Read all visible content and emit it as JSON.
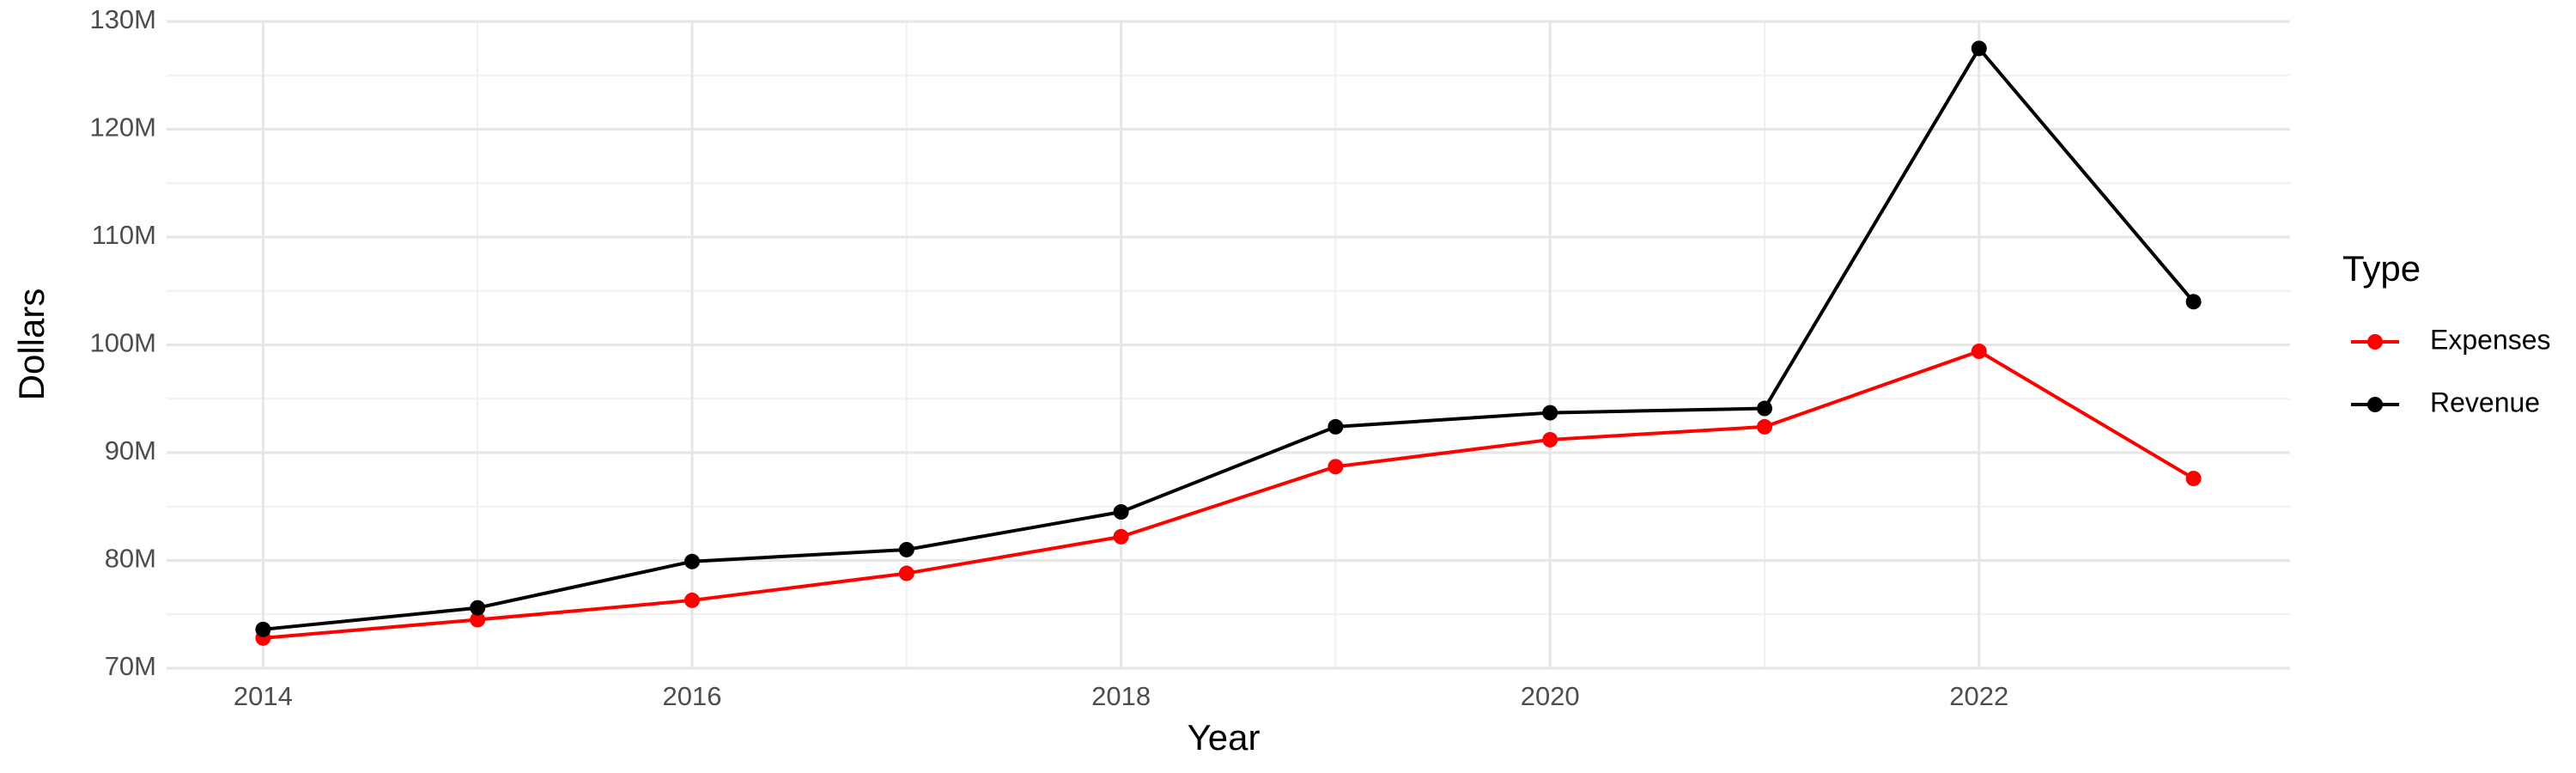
{
  "chart_data": {
    "type": "line",
    "x_label": "Year",
    "y_label": "Dollars",
    "legend_title": "Type",
    "legend": "right",
    "x": [
      2014,
      2015,
      2016,
      2017,
      2018,
      2019,
      2020,
      2021,
      2022,
      2023
    ],
    "series": [
      {
        "name": "Expenses",
        "color": "#ff0000",
        "values": [
          72800000,
          74500000,
          76300000,
          78800000,
          82200000,
          88700000,
          91200000,
          92400000,
          99400000,
          87600000
        ]
      },
      {
        "name": "Revenue",
        "color": "#000000",
        "values": [
          73600000,
          75600000,
          79900000,
          81000000,
          84500000,
          92400000,
          93700000,
          94100000,
          127500000,
          104000000
        ]
      }
    ],
    "xlim": [
      2013.55,
      2023.45
    ],
    "xticks": [
      2014,
      2016,
      2018,
      2020,
      2022
    ],
    "ylim": [
      70000000,
      130000000
    ],
    "yticks": [
      {
        "value": 70000000,
        "label": "70M"
      },
      {
        "value": 80000000,
        "label": "80M"
      },
      {
        "value": 90000000,
        "label": "90M"
      },
      {
        "value": 100000000,
        "label": "100M"
      },
      {
        "value": 110000000,
        "label": "110M"
      },
      {
        "value": 120000000,
        "label": "120M"
      },
      {
        "value": 130000000,
        "label": "130M"
      }
    ],
    "grid": true
  }
}
